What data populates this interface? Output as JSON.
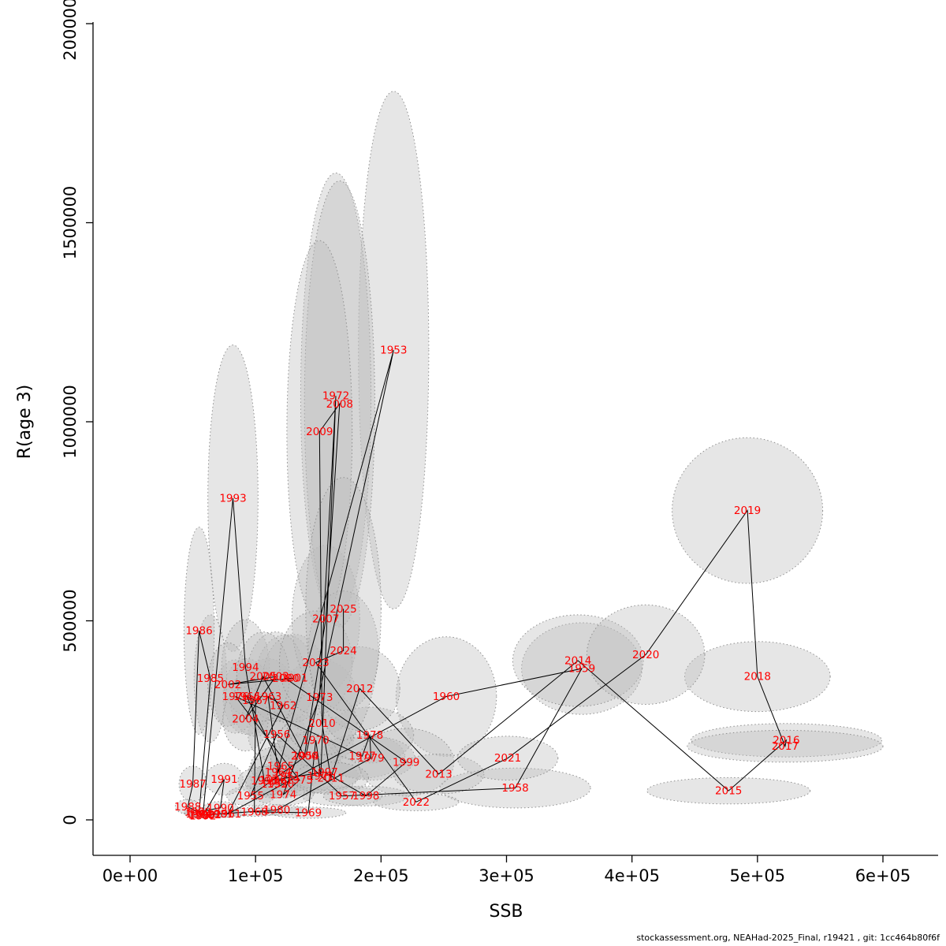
{
  "chart_data": {
    "type": "scatter",
    "title": "",
    "xlabel": "SSB",
    "ylabel": "R(age 3)",
    "xlim": [
      0,
      600000
    ],
    "ylim": [
      0,
      2000000
    ],
    "grid": false,
    "legend": "none",
    "x_ticks": [
      {
        "v": 0,
        "label": "0e+00"
      },
      {
        "v": 100000,
        "label": "1e+05"
      },
      {
        "v": 200000,
        "label": "2e+05"
      },
      {
        "v": 300000,
        "label": "3e+05"
      },
      {
        "v": 400000,
        "label": "4e+05"
      },
      {
        "v": 500000,
        "label": "5e+05"
      },
      {
        "v": 600000,
        "label": "6e+05"
      }
    ],
    "y_ticks": [
      {
        "v": 0,
        "label": "0"
      },
      {
        "v": 500000,
        "label": "500000"
      },
      {
        "v": 1000000,
        "label": "1000000"
      },
      {
        "v": 1500000,
        "label": "1500000"
      },
      {
        "v": 2000000,
        "label": "2000000"
      }
    ],
    "colors": {
      "label": "#FF0000",
      "line": "#000000",
      "axis": "#000000",
      "ellipse_fill": "#BEBEBE",
      "ellipse_opacity": 0.38,
      "ellipse_stroke": "#8F8F8F"
    },
    "points_columns": [
      "year",
      "ssb",
      "recruitment_age3",
      "ssb_ci_halfwidth",
      "r_ci_halfheight"
    ],
    "points": [
      [
        1950,
        120000,
        90000,
        24000,
        35000
      ],
      [
        1951,
        125000,
        110000,
        25000,
        40000
      ],
      [
        1952,
        115000,
        90000,
        23000,
        35000
      ],
      [
        1953,
        210000,
        1180000,
        28000,
        650000
      ],
      [
        1954,
        140000,
        160000,
        28000,
        60000
      ],
      [
        1955,
        96000,
        60000,
        19000,
        25000
      ],
      [
        1956,
        117000,
        215000,
        23000,
        70000
      ],
      [
        1957,
        169000,
        60000,
        32000,
        25000
      ],
      [
        1958,
        307000,
        80000,
        60000,
        50000
      ],
      [
        1959,
        360000,
        380000,
        48000,
        115000
      ],
      [
        1960,
        252000,
        310000,
        40000,
        150000
      ],
      [
        1961,
        78000,
        15000,
        15000,
        9000
      ],
      [
        1962,
        122000,
        287000,
        24000,
        90000
      ],
      [
        1963,
        110000,
        310000,
        22000,
        95000
      ],
      [
        1964,
        118000,
        120000,
        24000,
        45000
      ],
      [
        1965,
        120000,
        135000,
        24000,
        50000
      ],
      [
        1966,
        93000,
        310000,
        19000,
        95000
      ],
      [
        1967,
        100000,
        300000,
        20000,
        90000
      ],
      [
        1968,
        99000,
        20000,
        20000,
        11000
      ],
      [
        1969,
        142000,
        18000,
        30000,
        14000
      ],
      [
        1970,
        148000,
        200000,
        30000,
        65000
      ],
      [
        1971,
        152000,
        110000,
        30000,
        42000
      ],
      [
        1972,
        164000,
        1065000,
        28000,
        560000
      ],
      [
        1973,
        151000,
        308000,
        30000,
        95000
      ],
      [
        1974,
        122000,
        63000,
        24000,
        26000
      ],
      [
        1975,
        135000,
        100000,
        27000,
        38000
      ],
      [
        1976,
        84000,
        310000,
        17000,
        92000
      ],
      [
        1977,
        185000,
        160000,
        34000,
        55000
      ],
      [
        1978,
        191000,
        213000,
        35000,
        70000
      ],
      [
        1979,
        192000,
        155000,
        35000,
        55000
      ],
      [
        1980,
        117000,
        25000,
        23000,
        13000
      ],
      [
        1981,
        72000,
        15000,
        14000,
        9000
      ],
      [
        1982,
        62000,
        13000,
        13000,
        8000
      ],
      [
        1983,
        57000,
        12000,
        12000,
        7000
      ],
      [
        1984,
        55000,
        15000,
        12000,
        9000
      ],
      [
        1985,
        64000,
        355000,
        13000,
        160000
      ],
      [
        1986,
        55000,
        475000,
        12000,
        260000
      ],
      [
        1987,
        50000,
        90000,
        11000,
        45000
      ],
      [
        1988,
        46000,
        33000,
        10000,
        18000
      ],
      [
        1989,
        54000,
        20000,
        11000,
        11000
      ],
      [
        1990,
        72000,
        30000,
        14000,
        16000
      ],
      [
        1991,
        75000,
        102000,
        15000,
        40000
      ],
      [
        1992,
        58000,
        10000,
        12000,
        6000
      ],
      [
        1993,
        82000,
        808000,
        20000,
        385000
      ],
      [
        1994,
        92000,
        383000,
        19000,
        120000
      ],
      [
        1995,
        107000,
        98000,
        21000,
        36000
      ],
      [
        1996,
        114000,
        100000,
        22000,
        36000
      ],
      [
        1997,
        155000,
        120000,
        29000,
        45000
      ],
      [
        1998,
        188000,
        60000,
        34000,
        25000
      ],
      [
        1999,
        220000,
        145000,
        38000,
        85000
      ],
      [
        2000,
        124000,
        355000,
        24000,
        110000
      ],
      [
        2001,
        131000,
        356000,
        25000,
        110000
      ],
      [
        2002,
        78000,
        340000,
        16000,
        105000
      ],
      [
        2003,
        116000,
        360000,
        23000,
        112000
      ],
      [
        2004,
        92000,
        253000,
        18000,
        80000
      ],
      [
        2005,
        106000,
        360000,
        21000,
        112000
      ],
      [
        2006,
        139000,
        160000,
        27000,
        55000
      ],
      [
        2007,
        156000,
        505000,
        27000,
        185000
      ],
      [
        2008,
        167000,
        1045000,
        28000,
        560000
      ],
      [
        2009,
        151000,
        975000,
        26000,
        480000
      ],
      [
        2010,
        153000,
        243000,
        28000,
        80000
      ],
      [
        2011,
        160000,
        105000,
        30000,
        40000
      ],
      [
        2012,
        183000,
        330000,
        32000,
        105000
      ],
      [
        2013,
        246000,
        115000,
        36000,
        50000
      ],
      [
        2014,
        357000,
        400000,
        52000,
        115000
      ],
      [
        2015,
        477000,
        73000,
        65000,
        33000
      ],
      [
        2016,
        523000,
        200000,
        76000,
        42000
      ],
      [
        2017,
        522000,
        185000,
        78000,
        40000
      ],
      [
        2018,
        500000,
        360000,
        58000,
        88000
      ],
      [
        2019,
        492000,
        777000,
        60000,
        183000
      ],
      [
        2020,
        411000,
        415000,
        47000,
        125000
      ],
      [
        2021,
        301000,
        155000,
        40000,
        55000
      ],
      [
        2022,
        228000,
        45000,
        34000,
        22000
      ],
      [
        2023,
        148000,
        395000,
        29000,
        130000
      ],
      [
        2024,
        170000,
        425000,
        28000,
        150000
      ],
      [
        2025,
        170000,
        530000,
        30000,
        330000
      ]
    ]
  },
  "footer": {
    "text": "stockassessment.org, NEAHad-2025_Final, r19421 , git: 1cc464b80f6f"
  }
}
